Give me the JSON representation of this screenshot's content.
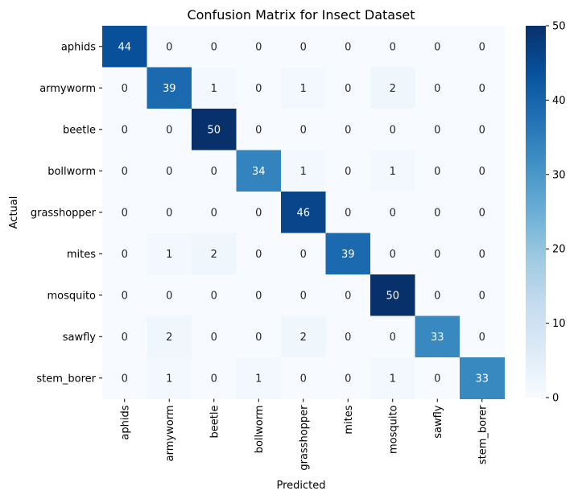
{
  "chart_data": {
    "type": "heatmap",
    "title": "Confusion Matrix for Insect Dataset",
    "xlabel": "Predicted",
    "ylabel": "Actual",
    "rows": [
      "aphids",
      "armyworm",
      "beetle",
      "bollworm",
      "grasshopper",
      "mites",
      "mosquito",
      "sawfly",
      "stem_borer"
    ],
    "columns": [
      "aphids",
      "armyworm",
      "beetle",
      "bollworm",
      "grasshopper",
      "mites",
      "mosquito",
      "sawfly",
      "stem_borer"
    ],
    "values": [
      [
        44,
        0,
        0,
        0,
        0,
        0,
        0,
        0,
        0
      ],
      [
        0,
        39,
        1,
        0,
        1,
        0,
        2,
        0,
        0
      ],
      [
        0,
        0,
        50,
        0,
        0,
        0,
        0,
        0,
        0
      ],
      [
        0,
        0,
        0,
        34,
        1,
        0,
        1,
        0,
        0
      ],
      [
        0,
        0,
        0,
        0,
        46,
        0,
        0,
        0,
        0
      ],
      [
        0,
        1,
        2,
        0,
        0,
        39,
        0,
        0,
        0
      ],
      [
        0,
        0,
        0,
        0,
        0,
        0,
        50,
        0,
        0
      ],
      [
        0,
        2,
        0,
        0,
        2,
        0,
        0,
        33,
        0
      ],
      [
        0,
        1,
        0,
        1,
        0,
        0,
        1,
        0,
        33
      ]
    ],
    "colorbar": {
      "min": 0,
      "max": 50,
      "ticks": [
        0,
        10,
        20,
        30,
        40,
        50
      ],
      "colormap": "Blues"
    },
    "annotations": true
  },
  "colors": {
    "light": "#f7fbff",
    "dark": "#08306b",
    "text_light": "#ffffff",
    "text_dark": "#262626"
  }
}
